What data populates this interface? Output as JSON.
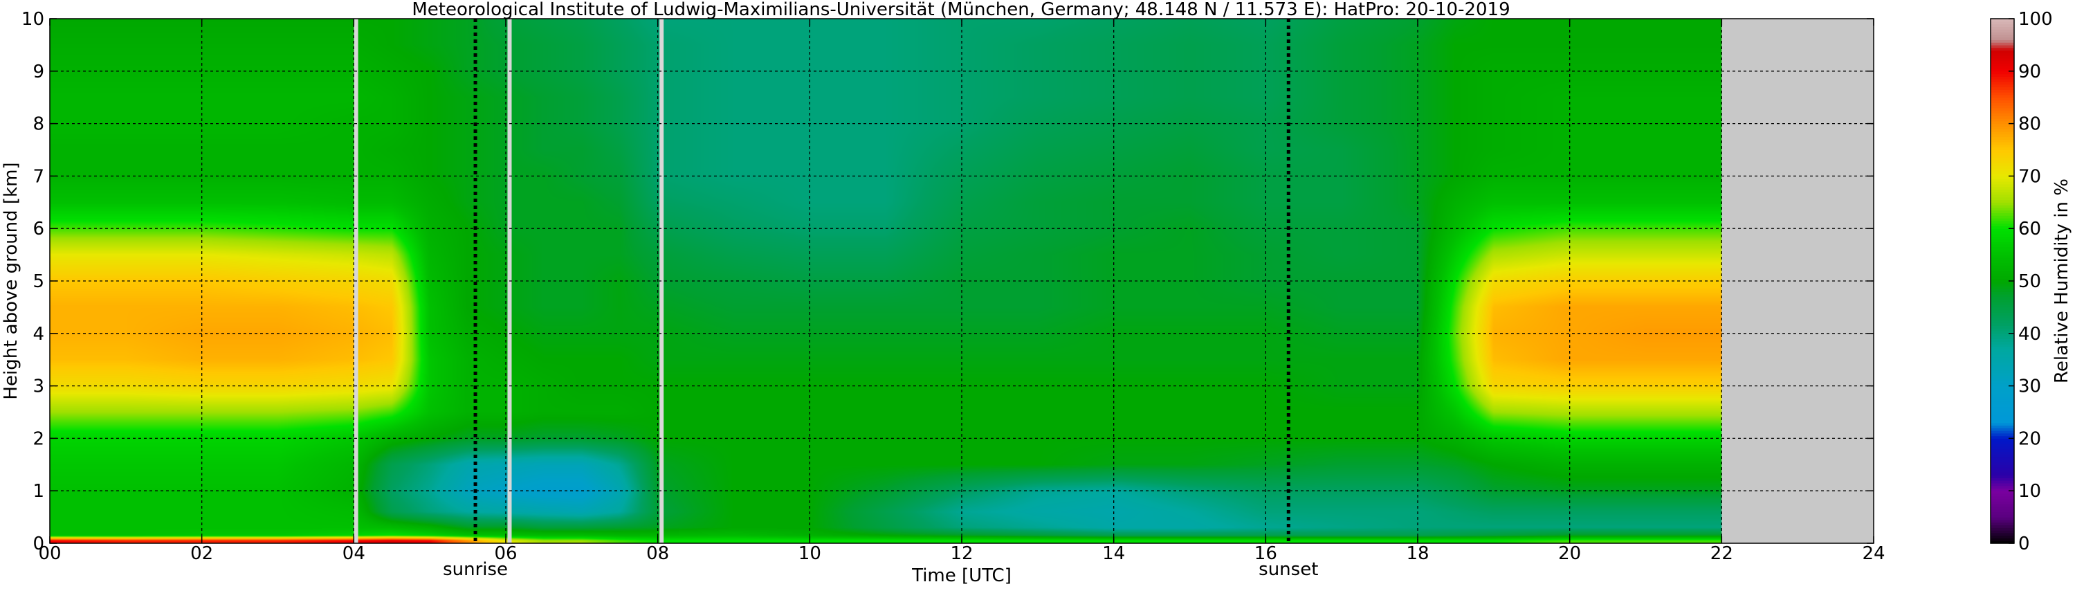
{
  "chart_data": {
    "type": "heatmap",
    "title": "Meteorological Institute of Ludwig-Maximilians-Universität (München, Germany; 48.148 N / 11.573 E):    HatPro: 20-10-2019",
    "xlabel": "Time [UTC]",
    "ylabel": "Height above ground [km]",
    "colorbar_label": "Relative Humidity in %",
    "xlim": [
      0,
      24
    ],
    "ylim": [
      0,
      10
    ],
    "clim": [
      0,
      100
    ],
    "grid": true,
    "x_ticks": [
      "00",
      "02",
      "04",
      "06",
      "08",
      "10",
      "12",
      "14",
      "16",
      "18",
      "20",
      "22",
      "24"
    ],
    "y_ticks": [
      "0",
      "1",
      "2",
      "3",
      "4",
      "5",
      "6",
      "7",
      "8",
      "9",
      "10"
    ],
    "colorbar_ticks": [
      "0",
      "10",
      "20",
      "30",
      "40",
      "50",
      "60",
      "70",
      "80",
      "90",
      "100"
    ],
    "data_end_hour": 22,
    "no_data_color": "#c8c8c8",
    "annotations": [
      {
        "label": "sunrise",
        "x": 5.6
      },
      {
        "label": "sunset",
        "x": 16.3
      }
    ],
    "gaps": [
      4.03,
      6.05,
      8.05
    ],
    "colormap": [
      {
        "v": 0,
        "c": "#000000"
      },
      {
        "v": 5,
        "c": "#5a0080"
      },
      {
        "v": 10,
        "c": "#7a00a0"
      },
      {
        "v": 13,
        "c": "#2a00a8"
      },
      {
        "v": 20,
        "c": "#0018c8"
      },
      {
        "v": 23,
        "c": "#0098d8"
      },
      {
        "v": 30,
        "c": "#00a0c8"
      },
      {
        "v": 37,
        "c": "#00a8a0"
      },
      {
        "v": 42,
        "c": "#00a060"
      },
      {
        "v": 47,
        "c": "#00a030"
      },
      {
        "v": 50,
        "c": "#00a800"
      },
      {
        "v": 55,
        "c": "#00c000"
      },
      {
        "v": 60,
        "c": "#00e000"
      },
      {
        "v": 65,
        "c": "#a0e000"
      },
      {
        "v": 70,
        "c": "#e8e800"
      },
      {
        "v": 75,
        "c": "#ffc800"
      },
      {
        "v": 80,
        "c": "#ff9000"
      },
      {
        "v": 85,
        "c": "#ff5000"
      },
      {
        "v": 90,
        "c": "#f00000"
      },
      {
        "v": 94,
        "c": "#d00000"
      },
      {
        "v": 96,
        "c": "#c09090"
      },
      {
        "v": 100,
        "c": "#d8b8b8"
      }
    ],
    "heights_km": [
      0.05,
      0.15,
      0.3,
      0.6,
      1.0,
      1.5,
      2.0,
      2.5,
      3.0,
      3.5,
      4.0,
      4.5,
      5.0,
      5.5,
      6.0,
      6.5,
      7.0,
      7.5,
      8.0,
      8.5,
      9.0,
      9.5,
      10.0
    ],
    "times_h": [
      0,
      1,
      2,
      3,
      4,
      4.5,
      5,
      5.5,
      6,
      6.5,
      7,
      7.5,
      8,
      9,
      10,
      11,
      12,
      13,
      14,
      15,
      16,
      17,
      18,
      18.5,
      19,
      20,
      21,
      22
    ],
    "rh_percent": [
      [
        90,
        55,
        55,
        55,
        55,
        56,
        58,
        65,
        72,
        76,
        77,
        77,
        75,
        70,
        62,
        55,
        52,
        52,
        53,
        53,
        52,
        51,
        50
      ],
      [
        88,
        55,
        55,
        55,
        55,
        56,
        58,
        65,
        72,
        76,
        77,
        77,
        75,
        70,
        62,
        55,
        52,
        52,
        53,
        53,
        52,
        51,
        50
      ],
      [
        88,
        56,
        55,
        55,
        55,
        56,
        58,
        65,
        73,
        77,
        78,
        77,
        75,
        70,
        62,
        55,
        52,
        52,
        53,
        53,
        52,
        51,
        50
      ],
      [
        88,
        56,
        55,
        55,
        55,
        56,
        58,
        65,
        73,
        77,
        78,
        77,
        74,
        69,
        61,
        55,
        52,
        52,
        53,
        53,
        52,
        51,
        50
      ],
      [
        90,
        58,
        55,
        54,
        52,
        53,
        56,
        64,
        72,
        76,
        77,
        76,
        73,
        68,
        60,
        54,
        52,
        52,
        52,
        53,
        52,
        51,
        50
      ],
      [
        92,
        60,
        54,
        44,
        42,
        44,
        52,
        62,
        71,
        75,
        76,
        75,
        72,
        67,
        60,
        54,
        52,
        51,
        52,
        52,
        51,
        50,
        50
      ],
      [
        90,
        58,
        52,
        40,
        38,
        40,
        50,
        55,
        56,
        56,
        55,
        55,
        54,
        53,
        52,
        51,
        50,
        50,
        50,
        50,
        50,
        49,
        49
      ],
      [
        80,
        55,
        48,
        37,
        32,
        35,
        48,
        52,
        52,
        52,
        51,
        50,
        50,
        50,
        50,
        49,
        49,
        49,
        49,
        49,
        48,
        48,
        48
      ],
      [
        70,
        55,
        48,
        36,
        30,
        34,
        48,
        52,
        52,
        51,
        50,
        49,
        49,
        49,
        48,
        48,
        48,
        48,
        48,
        48,
        47,
        47,
        46
      ],
      [
        65,
        54,
        46,
        35,
        28,
        33,
        47,
        51,
        51,
        50,
        49,
        48,
        48,
        48,
        48,
        48,
        48,
        47,
        47,
        47,
        46,
        46,
        45
      ],
      [
        65,
        54,
        46,
        34,
        28,
        33,
        47,
        51,
        50,
        50,
        49,
        48,
        48,
        48,
        48,
        48,
        47,
        47,
        46,
        46,
        45,
        45,
        44
      ],
      [
        62,
        53,
        47,
        37,
        34,
        38,
        48,
        51,
        50,
        50,
        49,
        49,
        49,
        48,
        48,
        47,
        46,
        45,
        44,
        44,
        43,
        43,
        42
      ],
      [
        60,
        53,
        48,
        46,
        47,
        48,
        50,
        50,
        50,
        49,
        49,
        48,
        47,
        46,
        44,
        42,
        41,
        41,
        41,
        41,
        41,
        41,
        40
      ],
      [
        60,
        54,
        50,
        50,
        50,
        50,
        50,
        50,
        50,
        49,
        48,
        47,
        46,
        44,
        42,
        41,
        40,
        40,
        40,
        40,
        40,
        40,
        40
      ],
      [
        60,
        52,
        50,
        50,
        50,
        50,
        50,
        50,
        50,
        49,
        48,
        47,
        45,
        43,
        41,
        40,
        40,
        40,
        40,
        40,
        40,
        40,
        40
      ],
      [
        60,
        50,
        45,
        44,
        47,
        50,
        50,
        50,
        50,
        49,
        48,
        47,
        45,
        43,
        41,
        40,
        40,
        40,
        40,
        40,
        40,
        40,
        40
      ],
      [
        60,
        48,
        40,
        38,
        42,
        50,
        50,
        50,
        50,
        49,
        48,
        47,
        47,
        46,
        45,
        44,
        43,
        42,
        41,
        41,
        41,
        41,
        41
      ],
      [
        60,
        46,
        38,
        36,
        38,
        50,
        50,
        50,
        50,
        49,
        48,
        47,
        47,
        47,
        46,
        46,
        45,
        44,
        43,
        42,
        42,
        42,
        41
      ],
      [
        60,
        44,
        36,
        35,
        37,
        49,
        50,
        50,
        50,
        49,
        49,
        48,
        48,
        48,
        47,
        47,
        46,
        45,
        44,
        43,
        43,
        43,
        42
      ],
      [
        60,
        44,
        36,
        37,
        40,
        49,
        50,
        50,
        50,
        49,
        49,
        48,
        48,
        48,
        48,
        47,
        47,
        46,
        45,
        44,
        44,
        44,
        43
      ],
      [
        60,
        44,
        38,
        40,
        42,
        48,
        50,
        50,
        50,
        49,
        49,
        48,
        47,
        47,
        46,
        45,
        45,
        44,
        44,
        43,
        43,
        43,
        42
      ],
      [
        60,
        44,
        39,
        40,
        42,
        47,
        50,
        50,
        49,
        49,
        48,
        47,
        47,
        46,
        46,
        45,
        45,
        45,
        46,
        46,
        46,
        46,
        45
      ],
      [
        60,
        44,
        40,
        40,
        42,
        47,
        50,
        50,
        49,
        49,
        48,
        47,
        47,
        47,
        47,
        48,
        48,
        48,
        48,
        48,
        48,
        48,
        47
      ],
      [
        60,
        45,
        40,
        41,
        44,
        48,
        52,
        56,
        60,
        62,
        63,
        62,
        60,
        57,
        54,
        52,
        50,
        50,
        50,
        50,
        50,
        50,
        49
      ],
      [
        60,
        46,
        40,
        42,
        47,
        50,
        56,
        65,
        73,
        76,
        77,
        76,
        72,
        66,
        60,
        55,
        52,
        51,
        51,
        51,
        51,
        50,
        50
      ],
      [
        62,
        48,
        40,
        42,
        48,
        52,
        58,
        66,
        74,
        78,
        78,
        78,
        74,
        68,
        62,
        55,
        52,
        52,
        52,
        52,
        51,
        50,
        50
      ],
      [
        62,
        48,
        40,
        42,
        48,
        52,
        58,
        66,
        74,
        78,
        79,
        78,
        74,
        68,
        62,
        55,
        52,
        52,
        52,
        52,
        51,
        50,
        50
      ],
      [
        62,
        48,
        40,
        42,
        48,
        52,
        58,
        66,
        74,
        78,
        79,
        78,
        74,
        68,
        62,
        55,
        52,
        52,
        52,
        52,
        51,
        50,
        50
      ]
    ]
  }
}
